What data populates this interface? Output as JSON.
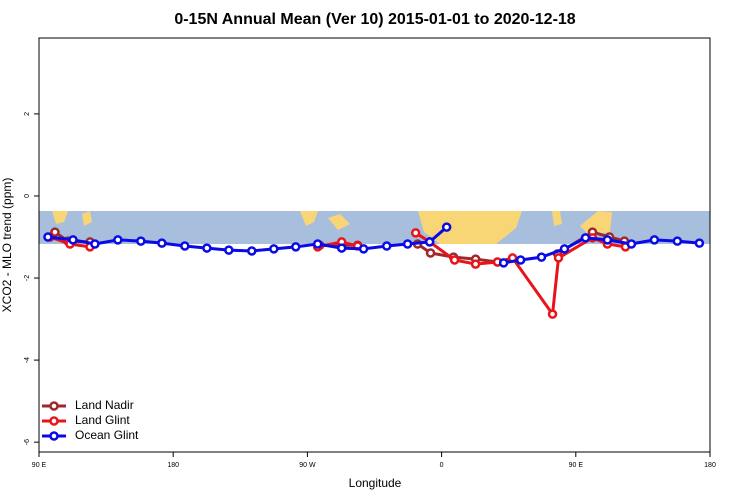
{
  "chart_data": {
    "type": "line",
    "title": "0-15N Annual Mean (Ver 10)   2015-01-01 to 2020-12-18",
    "xlabel": "Longitude",
    "ylabel": "XCO2 - MLO trend (ppm)",
    "xlim": [
      90,
      540
    ],
    "ylim": [
      -6.24,
      3.85
    ],
    "xticks": [
      {
        "value": 90,
        "label": "90 E"
      },
      180,
      {
        "value": 270,
        "label": "90 W"
      },
      {
        "value": 360,
        "label": "0"
      },
      {
        "value": 450,
        "label": "90 E"
      },
      {
        "value": 540,
        "label": "180"
      }
    ],
    "yticks": [
      -6,
      -4,
      -2,
      0,
      2
    ],
    "legend": "lower left",
    "series": [
      {
        "name": "Land Nadir",
        "color": "#a0282d",
        "x": [
          100.7,
          109.4,
          124.2,
          null,
          278.3,
          303.7,
          null,
          343.9,
          352.6,
          368.0,
          382.8,
          397.5,
          null,
          437.7,
          461.2,
          472.6,
          482.6
        ],
        "values": [
          -0.88,
          -1.1,
          -1.12,
          null,
          -1.2,
          -1.2,
          null,
          -1.17,
          -1.39,
          -1.49,
          -1.54,
          -1.61,
          null,
          -1.41,
          -0.88,
          -1.0,
          -1.1
        ]
      },
      {
        "name": "Land Glint",
        "color": "#e8141a",
        "x": [
          97.4,
          110.8,
          124.2,
          null,
          276.9,
          293.0,
          303.7,
          null,
          342.6,
          352.0,
          368.7,
          382.8,
          397.5,
          407.6,
          434.4,
          438.4,
          461.2,
          471.2,
          483.3
        ],
        "values": [
          -1.0,
          -1.17,
          -1.24,
          null,
          -1.24,
          -1.12,
          -1.22,
          null,
          -0.9,
          -1.12,
          -1.56,
          -1.66,
          -1.61,
          -1.51,
          -2.88,
          -1.51,
          -1.02,
          -1.17,
          -1.24
        ]
      },
      {
        "name": "Ocean Glint",
        "color": "#0a0ae6",
        "x": [
          96.0,
          112.8,
          127.5,
          142.9,
          158.3,
          172.4,
          187.8,
          202.6,
          217.3,
          232.7,
          247.5,
          262.2,
          276.9,
          293.0,
          307.7,
          323.2,
          337.2,
          352.0,
          363.4,
          null,
          401.6,
          413.0,
          427.0,
          442.4,
          456.5,
          471.2,
          487.3,
          502.7,
          518.1,
          532.9
        ],
        "values": [
          -1.0,
          -1.07,
          -1.17,
          -1.07,
          -1.1,
          -1.15,
          -1.22,
          -1.27,
          -1.32,
          -1.34,
          -1.29,
          -1.24,
          -1.17,
          -1.27,
          -1.29,
          -1.22,
          -1.17,
          -1.12,
          -0.76,
          null,
          -1.63,
          -1.56,
          -1.49,
          -1.29,
          -1.02,
          -1.07,
          -1.17,
          -1.07,
          -1.1,
          -1.15
        ]
      }
    ]
  }
}
